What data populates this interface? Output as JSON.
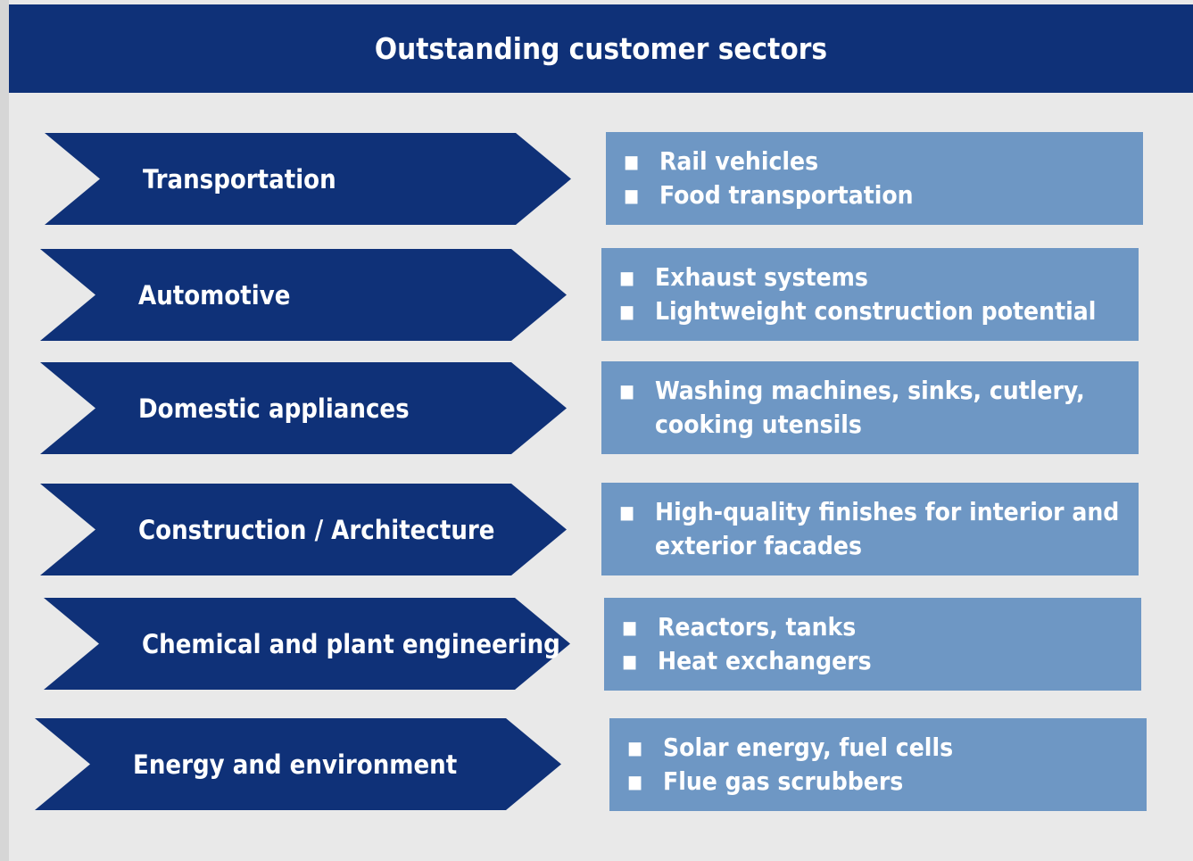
{
  "header": {
    "title": "Outstanding customer sectors"
  },
  "sectors": [
    {
      "label": "Transportation",
      "items": [
        "Rail vehicles",
        "Food transportation"
      ]
    },
    {
      "label": "Automotive",
      "items": [
        "Exhaust systems",
        "Lightweight construction potential"
      ]
    },
    {
      "label": "Domestic appliances",
      "items": [
        "Washing machines, sinks, cutlery, cooking utensils"
      ]
    },
    {
      "label": "Construction / Architecture",
      "items": [
        "High-quality finishes for interior and exterior facades"
      ]
    },
    {
      "label": "Chemical and plant engineering",
      "items": [
        "Reactors, tanks",
        "Heat exchangers"
      ]
    },
    {
      "label": "Energy and environment",
      "items": [
        "Solar energy, fuel cells",
        "Flue gas scrubbers"
      ]
    }
  ]
}
